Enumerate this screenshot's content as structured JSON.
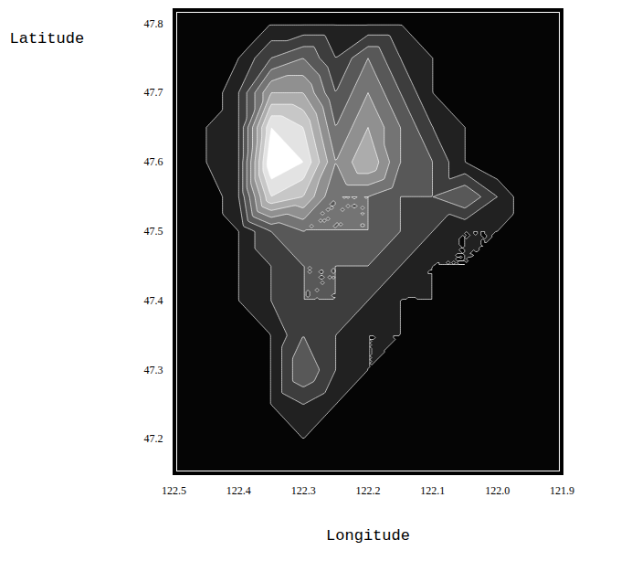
{
  "chart_data": {
    "type": "contour",
    "x_label": "Longitude",
    "y_label": "Latitude",
    "xlim": [
      122.5,
      121.9
    ],
    "ylim": [
      47.15,
      47.82
    ],
    "xticks": [
      122.5,
      122.4,
      122.3,
      122.2,
      122.1,
      {
        "value": 122,
        "label": "122.0"
      },
      121.9
    ],
    "yticks": [
      47.2,
      47.3,
      47.4,
      47.5,
      47.6,
      47.7,
      47.8
    ],
    "color": "#ffffff",
    "x": [
      122.5,
      122.45,
      122.4,
      122.35,
      122.3,
      122.25,
      122.2,
      122.15,
      122.1,
      122.05,
      122.0,
      121.95,
      121.9
    ],
    "y": [
      47.8,
      47.75,
      47.7,
      47.65,
      47.6,
      47.55,
      47.5,
      47.45,
      47.4,
      47.35,
      47.3,
      47.25,
      47.2,
      47.15
    ],
    "values": [
      [
        0,
        0,
        0,
        1,
        1,
        1,
        1,
        1,
        0,
        0,
        0,
        0,
        0
      ],
      [
        0,
        0,
        1,
        3,
        4,
        2,
        4,
        2,
        1,
        0,
        0,
        0,
        0
      ],
      [
        0,
        0,
        2,
        6,
        6,
        3,
        5,
        3,
        1,
        0,
        0,
        0,
        0
      ],
      [
        0,
        1,
        2,
        9,
        8,
        4,
        6,
        4,
        2,
        1,
        0,
        0,
        0
      ],
      [
        0,
        1,
        2,
        10,
        9,
        5,
        7,
        4,
        3,
        1,
        0,
        0,
        0
      ],
      [
        0,
        0,
        2,
        8,
        7,
        4,
        4,
        3,
        3,
        4,
        2,
        0,
        0
      ],
      [
        0,
        0,
        1,
        3,
        4,
        4,
        4,
        3,
        2,
        1,
        1,
        0,
        0
      ],
      [
        0,
        0,
        1,
        2,
        3,
        3,
        3,
        2,
        1,
        1,
        0,
        0,
        0
      ],
      [
        0,
        0,
        1,
        2,
        3,
        3,
        2,
        1,
        1,
        0,
        0,
        0,
        0
      ],
      [
        0,
        0,
        0,
        1,
        3,
        2,
        1,
        1,
        0,
        0,
        0,
        0,
        0
      ],
      [
        0,
        0,
        0,
        1,
        4,
        2,
        1,
        0,
        0,
        0,
        0,
        0,
        0
      ],
      [
        0,
        0,
        0,
        1,
        2,
        1,
        0,
        0,
        0,
        0,
        0,
        0,
        0
      ],
      [
        0,
        0,
        0,
        0,
        1,
        0,
        0,
        0,
        0,
        0,
        0,
        0,
        0
      ],
      [
        0,
        0,
        0,
        0,
        0,
        0,
        0,
        0,
        0,
        0,
        0,
        0,
        0
      ]
    ]
  }
}
